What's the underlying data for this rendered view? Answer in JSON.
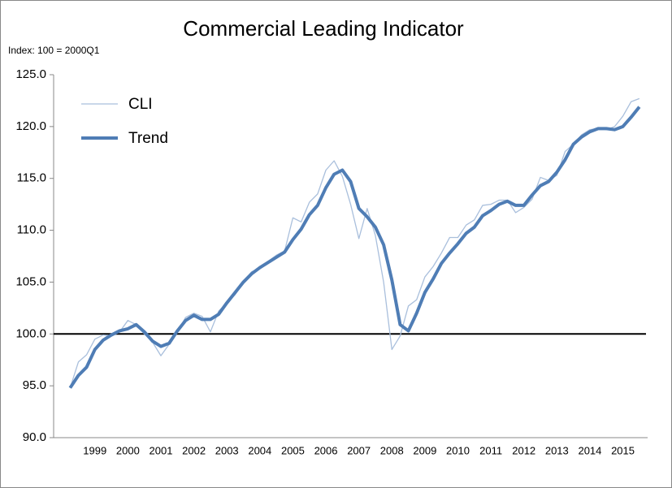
{
  "chart_data": {
    "type": "line",
    "title": "Commercial Leading Indicator",
    "y_label": "Index: 100 = 2000Q1",
    "x": [
      1998.75,
      1999.0,
      1999.25,
      1999.5,
      1999.75,
      2000.0,
      2000.25,
      2000.5,
      2000.75,
      2001.0,
      2001.25,
      2001.5,
      2001.75,
      2002.0,
      2002.25,
      2002.5,
      2002.75,
      2003.0,
      2003.25,
      2003.5,
      2003.75,
      2004.0,
      2004.25,
      2004.5,
      2004.75,
      2005.0,
      2005.25,
      2005.5,
      2005.75,
      2006.0,
      2006.25,
      2006.5,
      2006.75,
      2007.0,
      2007.25,
      2007.5,
      2007.75,
      2008.0,
      2008.25,
      2008.5,
      2008.75,
      2009.0,
      2009.25,
      2009.5,
      2009.75,
      2010.0,
      2010.25,
      2010.5,
      2010.75,
      2011.0,
      2011.25,
      2011.5,
      2011.75,
      2012.0,
      2012.25,
      2012.5,
      2012.75,
      2013.0,
      2013.25,
      2013.5,
      2013.75,
      2014.0,
      2014.25,
      2014.5,
      2014.75,
      2015.0,
      2015.25,
      2015.5,
      2015.75,
      2016.0
    ],
    "series": [
      {
        "name": "CLI",
        "color": "#a9bfdc",
        "width": 1.3,
        "values": [
          94.8,
          97.3,
          98.0,
          99.5,
          99.9,
          99.8,
          100.2,
          101.3,
          100.9,
          100.0,
          99.2,
          97.9,
          99.0,
          100.2,
          101.6,
          102.0,
          101.7,
          100.2,
          102.2,
          103.0,
          103.8,
          105.0,
          106.0,
          106.3,
          107.0,
          107.6,
          108.0,
          111.2,
          110.8,
          112.7,
          113.5,
          115.8,
          116.7,
          115.2,
          112.5,
          109.2,
          112.1,
          109.5,
          105.0,
          98.5,
          99.8,
          102.7,
          103.3,
          105.5,
          106.5,
          107.8,
          109.3,
          109.3,
          110.5,
          111.0,
          112.4,
          112.5,
          112.9,
          112.9,
          111.7,
          112.2,
          113.0,
          115.1,
          114.8,
          115.3,
          117.6,
          118.3,
          119.2,
          119.7,
          119.8,
          119.7,
          120.0,
          121.0,
          122.4,
          122.7
        ]
      },
      {
        "name": "Trend",
        "color": "#4f7db5",
        "width": 4,
        "values": [
          94.8,
          96.0,
          96.8,
          98.5,
          99.4,
          99.9,
          100.3,
          100.5,
          100.9,
          100.2,
          99.3,
          98.8,
          99.1,
          100.3,
          101.3,
          101.8,
          101.4,
          101.4,
          101.9,
          103.0,
          104.0,
          105.0,
          105.8,
          106.4,
          106.9,
          107.4,
          107.9,
          109.1,
          110.1,
          111.5,
          112.4,
          114.1,
          115.4,
          115.8,
          114.7,
          112.1,
          111.3,
          110.3,
          108.6,
          105.2,
          100.9,
          100.3,
          102.0,
          104.0,
          105.3,
          106.8,
          107.8,
          108.7,
          109.7,
          110.3,
          111.4,
          111.9,
          112.5,
          112.8,
          112.4,
          112.4,
          113.4,
          114.3,
          114.7,
          115.6,
          116.8,
          118.3,
          119.0,
          119.5,
          119.8,
          119.8,
          119.7,
          120.0,
          120.9,
          121.9
        ]
      }
    ],
    "reference_value": 100,
    "xlim": [
      1998.25,
      2016.25
    ],
    "xticks": [
      {
        "value": 1999.5,
        "label": "1999"
      },
      {
        "value": 2000.5,
        "label": "2000"
      },
      {
        "value": 2001.5,
        "label": "2001"
      },
      {
        "value": 2002.5,
        "label": "2002"
      },
      {
        "value": 2003.5,
        "label": "2003"
      },
      {
        "value": 2004.5,
        "label": "2004"
      },
      {
        "value": 2005.5,
        "label": "2005"
      },
      {
        "value": 2006.5,
        "label": "2006"
      },
      {
        "value": 2007.5,
        "label": "2007"
      },
      {
        "value": 2008.5,
        "label": "2008"
      },
      {
        "value": 2009.5,
        "label": "2009"
      },
      {
        "value": 2010.5,
        "label": "2010"
      },
      {
        "value": 2011.5,
        "label": "2011"
      },
      {
        "value": 2012.5,
        "label": "2012"
      },
      {
        "value": 2013.5,
        "label": "2013"
      },
      {
        "value": 2014.5,
        "label": "2014"
      },
      {
        "value": 2015.5,
        "label": "2015"
      }
    ],
    "ylim": [
      90,
      125
    ],
    "yticks": [
      {
        "value": 90,
        "label": "90.0"
      },
      {
        "value": 95,
        "label": "95.0"
      },
      {
        "value": 100,
        "label": "100.0"
      },
      {
        "value": 105,
        "label": "105.0"
      },
      {
        "value": 110,
        "label": "110.0"
      },
      {
        "value": 115,
        "label": "115.0"
      },
      {
        "value": 120,
        "label": "120.0"
      },
      {
        "value": 125,
        "label": "125.0"
      }
    ],
    "legend": "top-left"
  }
}
